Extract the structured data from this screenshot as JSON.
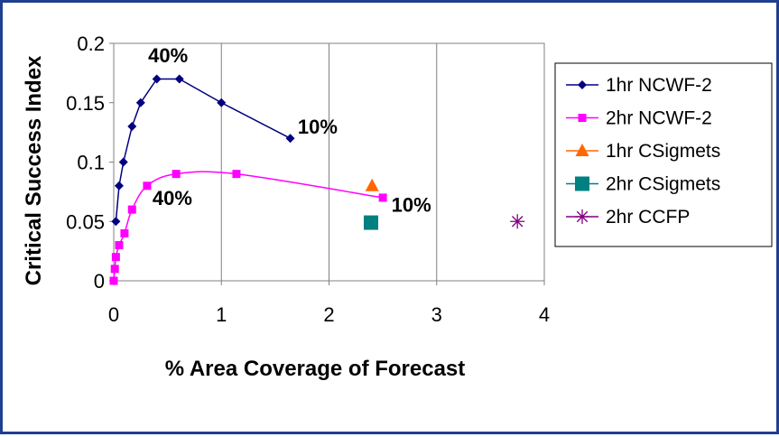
{
  "chart_data": {
    "type": "scatter",
    "xlabel": "% Area Coverage of Forecast",
    "ylabel": "Critical Success Index",
    "xlim": [
      0,
      4
    ],
    "ylim": [
      0,
      0.2
    ],
    "x_ticks": [
      "0",
      "1",
      "2",
      "3",
      "4"
    ],
    "y_ticks": [
      "0",
      "0.05",
      "0.1",
      "0.15",
      "0.2"
    ],
    "grid": "vertical",
    "legend_position": "right",
    "series": [
      {
        "name": "1hr NCWF-2",
        "marker": "diamond",
        "color": "#000080",
        "line": true,
        "points": [
          [
            0.02,
            0.05
          ],
          [
            0.05,
            0.08
          ],
          [
            0.09,
            0.1
          ],
          [
            0.17,
            0.13
          ],
          [
            0.25,
            0.15
          ],
          [
            0.4,
            0.17
          ],
          [
            0.61,
            0.17
          ],
          [
            1.0,
            0.15
          ],
          [
            1.64,
            0.12
          ]
        ]
      },
      {
        "name": "2hr NCWF-2",
        "marker": "square",
        "color": "#FF00FF",
        "line": true,
        "points": [
          [
            0.0,
            0.0
          ],
          [
            0.01,
            0.01
          ],
          [
            0.02,
            0.02
          ],
          [
            0.05,
            0.03
          ],
          [
            0.1,
            0.04
          ],
          [
            0.17,
            0.06
          ],
          [
            0.31,
            0.08
          ],
          [
            0.58,
            0.09
          ],
          [
            1.14,
            0.09
          ],
          [
            2.5,
            0.07
          ]
        ]
      },
      {
        "name": "1hr CSigmets",
        "marker": "triangle",
        "color": "#FF6600",
        "line": false,
        "points": [
          [
            2.4,
            0.08
          ]
        ]
      },
      {
        "name": "2hr CSigmets",
        "marker": "square-large",
        "color": "#008080",
        "line": false,
        "points": [
          [
            2.39,
            0.049
          ]
        ]
      },
      {
        "name": "2hr CCFP",
        "marker": "star",
        "color": "#800080",
        "line": false,
        "points": [
          [
            3.75,
            0.05
          ]
        ]
      }
    ],
    "annotations": [
      {
        "text": "40%",
        "x": 0.32,
        "y": 0.184
      },
      {
        "text": "10%",
        "x": 1.71,
        "y": 0.124
      },
      {
        "text": "40%",
        "x": 0.36,
        "y": 0.064
      },
      {
        "text": "10%",
        "x": 2.58,
        "y": 0.058
      }
    ]
  }
}
